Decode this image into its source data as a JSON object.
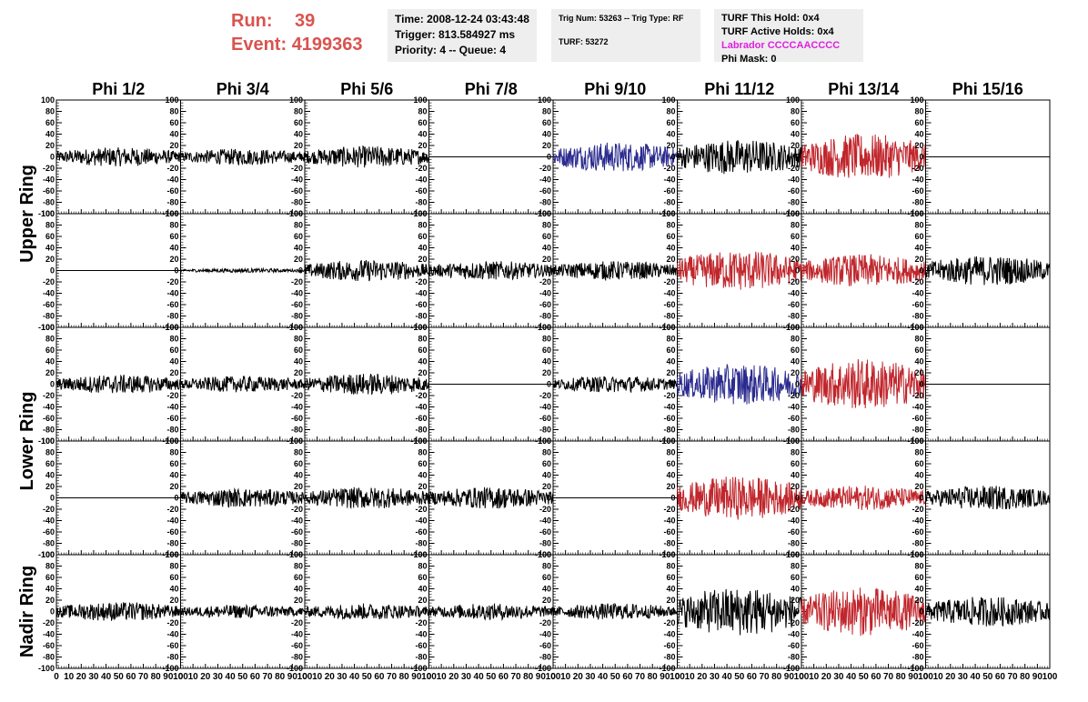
{
  "header": {
    "run_label": "Run:",
    "run_value": "39",
    "event_label": "Event:",
    "event_value": "4199363"
  },
  "info": {
    "time": "Time: 2008-12-24 03:43:48",
    "trigger": "Trigger: 813.584927 ms",
    "priority": "Priority: 4 -- Queue: 4",
    "trig_num": "Trig Num: 53263 -- Trig Type: RF",
    "turf": "TURF: 53272",
    "turf_hold": "TURF This Hold: 0x4",
    "turf_active": "TURF Active Holds: 0x4",
    "labrador": "Labrador CCCCAACCCC",
    "phi_mask": "Phi Mask: 0"
  },
  "colors": {
    "run_text": "#d9534f",
    "labrador_text": "#e020e0",
    "trace_black": "#000000",
    "trace_blue": "#2b2b8f",
    "trace_red": "#c0262c"
  },
  "chart_data": {
    "type": "line",
    "columns": [
      "Phi 1/2",
      "Phi 3/4",
      "Phi 5/6",
      "Phi 7/8",
      "Phi 9/10",
      "Phi 11/12",
      "Phi 13/14",
      "Phi 15/16"
    ],
    "rings": [
      "Upper Ring",
      "Lower Ring",
      "Nadir Ring"
    ],
    "ring_rows": [
      2,
      2,
      1
    ],
    "xlim": [
      0,
      100
    ],
    "ylim": [
      -100,
      100
    ],
    "x_ticks": [
      0,
      10,
      20,
      30,
      40,
      50,
      60,
      70,
      80,
      90,
      100
    ],
    "y_ticks": [
      100,
      80,
      60,
      40,
      20,
      0,
      -20,
      -40,
      -60,
      -80,
      -100
    ],
    "panels": [
      [
        {
          "amp": 14,
          "color": "black"
        },
        {
          "amp": 12,
          "color": "black"
        },
        {
          "amp": 16,
          "color": "black"
        },
        {
          "amp": 0,
          "color": "black"
        },
        {
          "amp": 22,
          "color": "blue"
        },
        {
          "amp": 26,
          "color": "black"
        },
        {
          "amp": 34,
          "color": "red"
        },
        {
          "amp": 0,
          "color": "black"
        }
      ],
      [
        {
          "amp": 0,
          "color": "black"
        },
        {
          "amp": 3,
          "color": "black"
        },
        {
          "amp": 16,
          "color": "black"
        },
        {
          "amp": 14,
          "color": "black"
        },
        {
          "amp": 14,
          "color": "black"
        },
        {
          "amp": 30,
          "color": "red"
        },
        {
          "amp": 24,
          "color": "red"
        },
        {
          "amp": 22,
          "color": "black"
        }
      ],
      [
        {
          "amp": 14,
          "color": "black"
        },
        {
          "amp": 12,
          "color": "black"
        },
        {
          "amp": 16,
          "color": "black"
        },
        {
          "amp": 0,
          "color": "black"
        },
        {
          "amp": 12,
          "color": "black"
        },
        {
          "amp": 30,
          "color": "blue"
        },
        {
          "amp": 38,
          "color": "red"
        },
        {
          "amp": 0,
          "color": "black"
        }
      ],
      [
        {
          "amp": 0,
          "color": "black"
        },
        {
          "amp": 14,
          "color": "black"
        },
        {
          "amp": 16,
          "color": "black"
        },
        {
          "amp": 16,
          "color": "black"
        },
        {
          "amp": 0,
          "color": "black"
        },
        {
          "amp": 32,
          "color": "red"
        },
        {
          "amp": 18,
          "color": "red"
        },
        {
          "amp": 18,
          "color": "black"
        }
      ],
      [
        {
          "amp": 14,
          "color": "black"
        },
        {
          "amp": 10,
          "color": "black"
        },
        {
          "amp": 12,
          "color": "black"
        },
        {
          "amp": 12,
          "color": "black"
        },
        {
          "amp": 12,
          "color": "black"
        },
        {
          "amp": 36,
          "color": "black"
        },
        {
          "amp": 36,
          "color": "red"
        },
        {
          "amp": 22,
          "color": "black"
        }
      ]
    ]
  }
}
